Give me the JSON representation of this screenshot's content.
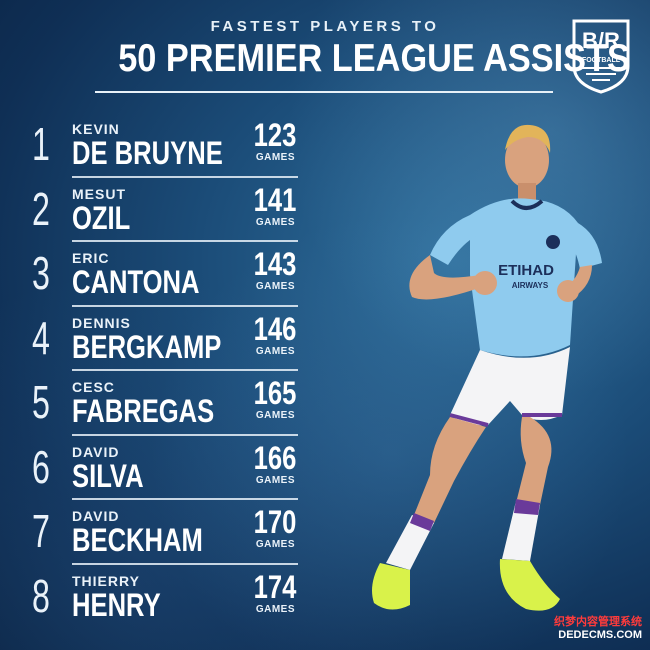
{
  "header": {
    "subtitle": "FASTEST PLAYERS TO",
    "title": "50 PREMIER LEAGUE ASSISTS"
  },
  "logo": {
    "brand": "B/R",
    "sub": "FOOTBALL"
  },
  "unit_label": "GAMES",
  "players": [
    {
      "rank": "1",
      "first": "KEVIN",
      "last": "DE BRUYNE",
      "games": "123"
    },
    {
      "rank": "2",
      "first": "MESUT",
      "last": "OZIL",
      "games": "141"
    },
    {
      "rank": "3",
      "first": "ERIC",
      "last": "CANTONA",
      "games": "143"
    },
    {
      "rank": "4",
      "first": "DENNIS",
      "last": "BERGKAMP",
      "games": "146"
    },
    {
      "rank": "5",
      "first": "CESC",
      "last": "FABREGAS",
      "games": "165"
    },
    {
      "rank": "6",
      "first": "DAVID",
      "last": "SILVA",
      "games": "166"
    },
    {
      "rank": "7",
      "first": "DAVID",
      "last": "BECKHAM",
      "games": "170"
    },
    {
      "rank": "8",
      "first": "THIERRY",
      "last": "HENRY",
      "games": "174"
    }
  ],
  "shirt_text": {
    "sponsor": "ETIHAD",
    "sponsor_sub": "AIRWAYS"
  },
  "watermark": {
    "line1": "织梦内容管理系统",
    "line2": "DEDECMS.COM"
  },
  "colors": {
    "background": "#1b4c78",
    "shirt": "#8fcbee",
    "accent": "#6a3a9a",
    "boot": "#d9f24a"
  }
}
